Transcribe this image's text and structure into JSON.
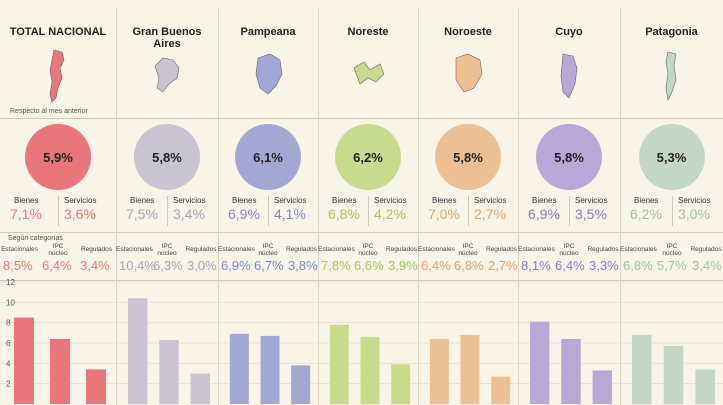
{
  "labels": {
    "respecto": "Respecto al mes anterior",
    "segun": "Según categorías",
    "bienes": "Bienes",
    "servicios": "Servicios",
    "estacionales": "Estacionales",
    "ipc_nucleo": "IPC núcleo",
    "regulados": "Regulados"
  },
  "regions": [
    {
      "name": "TOTAL NACIONAL",
      "circle": "5,9%",
      "bienes": "7,1%",
      "servicios": "3,6%",
      "est": "8,5%",
      "nucleo": "6,4%",
      "reg": "3,4%",
      "color": "#e8767a",
      "text": "#e8767a"
    },
    {
      "name": "Gran Buenos Aires",
      "circle": "5,8%",
      "bienes": "7,5%",
      "servicios": "3,4%",
      "est": "10,4%",
      "nucleo": "6,3%",
      "reg": "3,0%",
      "color": "#c9c4d1",
      "text": "#a9a3b3"
    },
    {
      "name": "Pampeana",
      "circle": "6,1%",
      "bienes": "6,9%",
      "servicios": "4,1%",
      "est": "6,9%",
      "nucleo": "6,7%",
      "reg": "3,8%",
      "color": "#a3a8d3",
      "text": "#8088c4"
    },
    {
      "name": "Noreste",
      "circle": "6,2%",
      "bienes": "6,8%",
      "servicios": "4,2%",
      "est": "7,8%",
      "nucleo": "6,6%",
      "reg": "3,9%",
      "color": "#c8db8c",
      "text": "#a9c45a"
    },
    {
      "name": "Noroeste",
      "circle": "5,8%",
      "bienes": "7,0%",
      "servicios": "2,7%",
      "est": "6,4%",
      "nucleo": "6,8%",
      "reg": "2,7%",
      "color": "#ecc093",
      "text": "#e3a468"
    },
    {
      "name": "Cuyo",
      "circle": "5,8%",
      "bienes": "6,9%",
      "servicios": "3,5%",
      "est": "8,1%",
      "nucleo": "6,4%",
      "reg": "3,3%",
      "color": "#b7a8d6",
      "text": "#8f7bc2"
    },
    {
      "name": "Patagonia",
      "circle": "5,3%",
      "bienes": "6,2%",
      "servicios": "3,0%",
      "est": "6,8%",
      "nucleo": "5,7%",
      "reg": "3,4%",
      "color": "#c5d6c6",
      "text": "#a2bfa6"
    }
  ],
  "chart_data": {
    "type": "bar",
    "yticks": [
      2,
      4,
      6,
      8,
      10,
      12
    ],
    "ylim": [
      0,
      12
    ],
    "categories": [
      "Estacionales",
      "IPC núcleo",
      "Regulados"
    ],
    "series": [
      {
        "name": "TOTAL NACIONAL",
        "values": [
          8.5,
          6.4,
          3.4
        ]
      },
      {
        "name": "Gran Buenos Aires",
        "values": [
          10.4,
          6.3,
          3.0
        ]
      },
      {
        "name": "Pampeana",
        "values": [
          6.9,
          6.7,
          3.8
        ]
      },
      {
        "name": "Noreste",
        "values": [
          7.8,
          6.6,
          3.9
        ]
      },
      {
        "name": "Noroeste",
        "values": [
          6.4,
          6.8,
          2.7
        ]
      },
      {
        "name": "Cuyo",
        "values": [
          8.1,
          6.4,
          3.3
        ]
      },
      {
        "name": "Patagonia",
        "values": [
          6.8,
          5.7,
          3.4
        ]
      }
    ]
  }
}
